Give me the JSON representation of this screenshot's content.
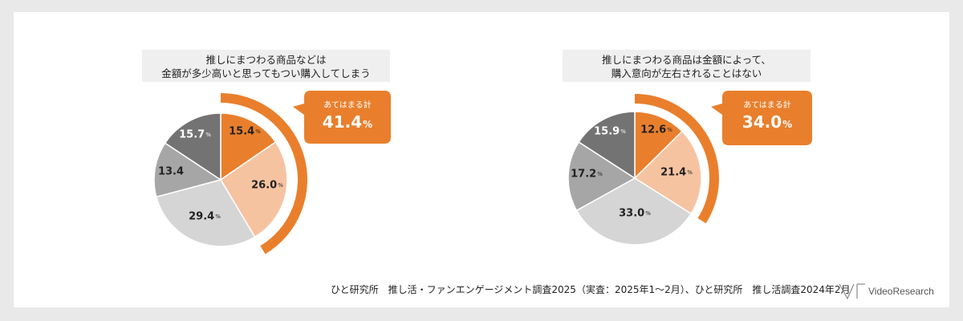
{
  "colors": {
    "accent": "#e97f2c",
    "peach": "#f6c3a1",
    "light_gray": "#d5d5d5",
    "mid_gray": "#a6a6a6",
    "dark_gray": "#737373",
    "background": "#e9e9e9"
  },
  "chart_data": [
    {
      "type": "pie",
      "title_lines": [
        "推しにまつわる商品などは",
        "金額が多少高いと思ってもつい購入してしまう"
      ],
      "slices": [
        {
          "label": "15.4",
          "value": 15.4,
          "unit": "%",
          "color": "#e97f2c",
          "text_color": "#222222"
        },
        {
          "label": "26.0",
          "value": 26.0,
          "unit": "%",
          "color": "#f6c3a1",
          "text_color": "#222222"
        },
        {
          "label": "29.4",
          "value": 29.4,
          "unit": "%",
          "color": "#d5d5d5",
          "text_color": "#222222"
        },
        {
          "label": "13.4",
          "value": 13.4,
          "unit": "",
          "color": "#a6a6a6",
          "text_color": "#222222"
        },
        {
          "label": "15.7",
          "value": 15.7,
          "unit": "%",
          "color": "#737373",
          "text_color": "#ffffff"
        }
      ],
      "callout": {
        "label": "あてはまる計",
        "value": "41.4",
        "unit": "%",
        "fraction": 0.414
      }
    },
    {
      "type": "pie",
      "title_lines": [
        "推しにまつわる商品は金額によって、",
        "購入意向が左右されることはない"
      ],
      "slices": [
        {
          "label": "12.6",
          "value": 12.6,
          "unit": "%",
          "color": "#e97f2c",
          "text_color": "#222222"
        },
        {
          "label": "21.4",
          "value": 21.4,
          "unit": "%",
          "color": "#f6c3a1",
          "text_color": "#222222"
        },
        {
          "label": "33.0",
          "value": 33.0,
          "unit": "%",
          "color": "#d5d5d5",
          "text_color": "#222222"
        },
        {
          "label": "17.2",
          "value": 17.2,
          "unit": "%",
          "color": "#a6a6a6",
          "text_color": "#222222"
        },
        {
          "label": "15.9",
          "value": 15.9,
          "unit": "%",
          "color": "#737373",
          "text_color": "#ffffff"
        }
      ],
      "callout": {
        "label": "あてはまる計",
        "value": "34.0",
        "unit": "%",
        "fraction": 0.34
      }
    }
  ],
  "footer": {
    "source": "ひと研究所　推し活・ファンエンゲージメント調査2025（実査：2025年1～2月）、ひと研究所　推し活調査2024年2月",
    "logo_text": "VideoResearch"
  }
}
